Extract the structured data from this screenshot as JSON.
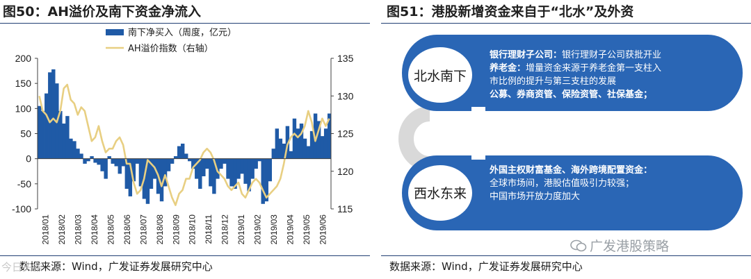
{
  "left_panel": {
    "title": "图50：AH溢价及南下资金净流入",
    "source": "数据来源：Wind，广发证券发展研究中心"
  },
  "right_panel": {
    "title": "图51：港股新增资金来自于“北水”及外资",
    "source": "数据来源：Wind，广发证券发展研究中心",
    "north": {
      "label": "北水南下",
      "lines": [
        {
          "head": "银行理财子公司：",
          "body": "银行理财子公司获批开业"
        },
        {
          "head": "养老金：",
          "body": "增量资金来源于养老金第一支柱入"
        },
        {
          "head": "",
          "body": "市比例的提升与第三支柱的发展"
        },
        {
          "head": "公募、券商资管、保险资管、社保基金；",
          "body": ""
        }
      ]
    },
    "west": {
      "label": "西水东来",
      "lines": [
        {
          "head": "外国主权财富基金、海外跨境配置资金：",
          "body": ""
        },
        {
          "head": "",
          "body": "全球市场间，港股估值吸引力较强；"
        },
        {
          "head": "",
          "body": "中国市场开放力度加大"
        }
      ]
    }
  },
  "watermark": {
    "text": "广发港股策略",
    "corner_text": "今日头条"
  },
  "colors": {
    "bar": "#1f5aa6",
    "line": "#e8cf82",
    "ring": "#2a66b5",
    "ring_light": "#d9d9d9",
    "rule": "#1f3d73"
  },
  "chart_data": {
    "type": "bar",
    "legend": [
      "南下净买入（周度，亿元）",
      "AH溢价指数（右轴）"
    ],
    "legend_position": "top-center",
    "x_tick_labels": [
      "2018/01",
      "2018/02",
      "2018/03",
      "2018/04",
      "2018/05",
      "2018/06",
      "2018/07",
      "2018/08",
      "2018/09",
      "2018/10",
      "2018/11",
      "2018/12",
      "2019/01",
      "2019/02",
      "2019/03",
      "2019/04",
      "2019/05",
      "2019/06"
    ],
    "left_axis": {
      "ticks": [
        200,
        150,
        100,
        50,
        0,
        -50,
        -100
      ],
      "min": -100,
      "max": 200
    },
    "right_axis": {
      "ticks": [
        135,
        130,
        125,
        120,
        115
      ],
      "min": 115,
      "max": 135
    },
    "series": [
      {
        "name": "南下净买入（周度，亿元）",
        "kind": "bar",
        "axis": "left",
        "values": [
          105,
          95,
          130,
          172,
          178,
          150,
          95,
          70,
          85,
          40,
          35,
          20,
          10,
          -10,
          -5,
          5,
          -8,
          -12,
          -25,
          -40,
          5,
          -10,
          -15,
          -30,
          -15,
          -60,
          -75,
          -45,
          -10,
          -55,
          -80,
          -90,
          -60,
          -40,
          -70,
          -85,
          -55,
          -25,
          -10,
          5,
          25,
          30,
          10,
          -5,
          -20,
          -40,
          -60,
          -35,
          -20,
          -55,
          -70,
          -40,
          -20,
          -10,
          -40,
          -55,
          -60,
          -40,
          -30,
          -50,
          -65,
          -40,
          -20,
          -5,
          -90,
          -85,
          -45,
          20,
          60,
          40,
          30,
          65,
          15,
          80,
          60,
          70,
          40,
          25,
          55,
          90,
          75,
          45,
          60,
          90
        ]
      },
      {
        "name": "AH溢价指数（右轴）",
        "kind": "line",
        "axis": "right",
        "values": [
          130,
          128,
          127.5,
          126.5,
          127,
          126.5,
          128,
          131,
          131.5,
          129.5,
          129,
          127.5,
          128.5,
          128,
          126,
          124,
          124.5,
          126,
          124,
          122.5,
          123,
          123,
          124,
          124.5,
          123.5,
          121,
          121,
          118.5,
          117,
          117.5,
          119,
          121.5,
          121,
          120.5,
          119.5,
          118,
          119.5,
          118,
          116.5,
          115.5,
          117,
          117.5,
          119,
          119,
          120.5,
          121,
          121.5,
          122.5,
          123,
          122.5,
          121.5,
          120,
          119.5,
          119,
          118,
          117.5,
          118,
          118.5,
          117,
          116.5,
          117.5,
          118.5,
          119,
          118.5,
          117.5,
          116.5,
          117,
          117.5,
          118,
          119,
          121,
          123.5,
          124.5,
          125,
          124.5,
          125,
          126,
          128,
          126.5,
          124,
          125.5,
          127,
          126,
          127
        ]
      }
    ]
  }
}
